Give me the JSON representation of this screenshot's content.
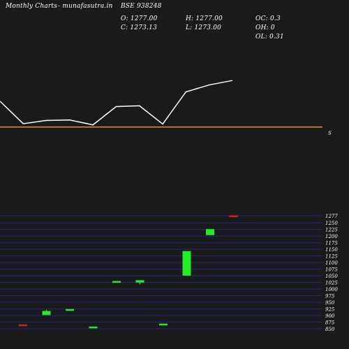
{
  "header": {
    "site_label": "Monthly Charts",
    "site_name": "- munafasutra.in",
    "symbol": "BSE 938248",
    "open": "O: 1277.00",
    "close": "C: 1273.13",
    "high": "H: 1277.00",
    "low": "L: 1273.00",
    "oc": "OC: 0.3",
    "oh": "OH: 0",
    "ol": "OL: 0.31"
  },
  "upper_panel": {
    "line_color": "#ffffff",
    "baseline_color": "#e8901c",
    "baseline_label": "S"
  },
  "chart_data": {
    "type": "candlestick",
    "ylim": [
      850,
      1277
    ],
    "y_ticks": [
      1277,
      1250,
      1225,
      1200,
      1175,
      1150,
      1125,
      1100,
      1075,
      1050,
      1025,
      1000,
      975,
      950,
      925,
      900,
      875,
      850
    ],
    "y_tick_labels": [
      "1277",
      "1250",
      "1225",
      "1200",
      "1175",
      "1150",
      "1125",
      "1100",
      "1075",
      "1050",
      "1025",
      "1000",
      "975",
      "950",
      "925",
      "900",
      "875",
      "850"
    ],
    "up_color": "#22ee22",
    "down_color": "#ee2222",
    "candles": [
      {
        "open": 865,
        "high": 866,
        "low": 864,
        "close": 864
      },
      {
        "open": 903,
        "high": 922,
        "low": 903,
        "close": 916
      },
      {
        "open": 923,
        "high": 924,
        "low": 922,
        "close": 923
      },
      {
        "open": 857,
        "high": 858,
        "low": 856,
        "close": 857
      },
      {
        "open": 1029,
        "high": 1030,
        "low": 1028,
        "close": 1029
      },
      {
        "open": 1026,
        "high": 1033,
        "low": 1017,
        "close": 1032
      },
      {
        "open": 868,
        "high": 869,
        "low": 867,
        "close": 868
      },
      {
        "open": 1052,
        "high": 1143,
        "low": 1052,
        "close": 1142
      },
      {
        "open": 1205,
        "high": 1226,
        "low": 1205,
        "close": 1225
      },
      {
        "open": 1277,
        "high": 1277,
        "low": 1273,
        "close": 1273.13
      }
    ],
    "line_series": [
      {
        "values": [
          155,
          100,
          108,
          109,
          97,
          142,
          144,
          99,
          178,
          195,
          206
        ]
      }
    ]
  }
}
